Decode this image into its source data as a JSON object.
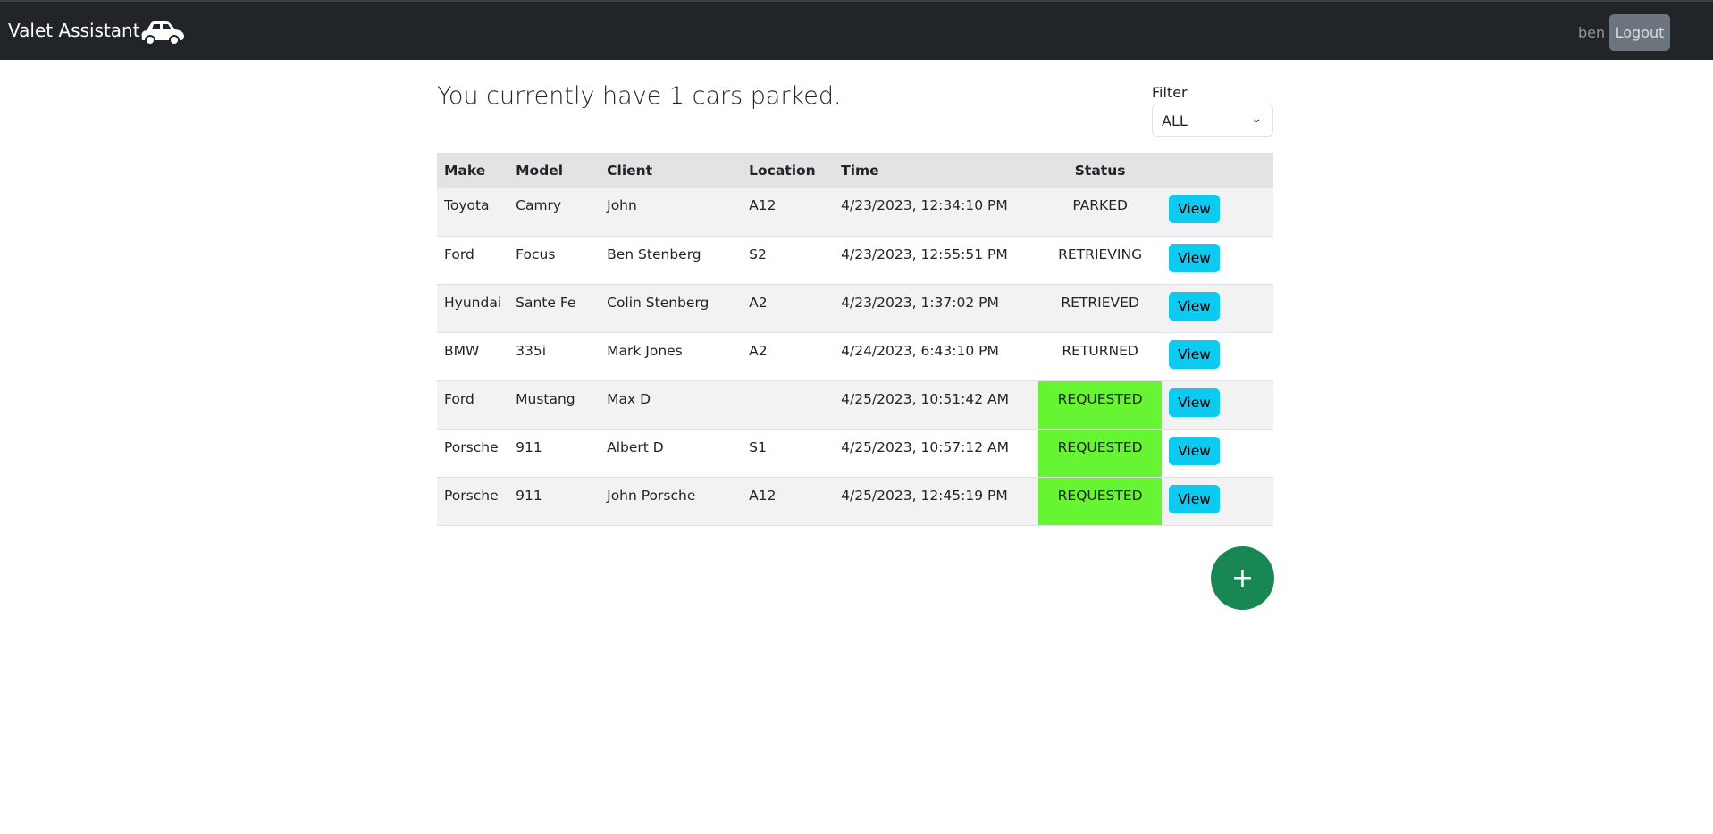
{
  "navbar": {
    "brand": "Valet Assistant",
    "car_icon": "car-icon",
    "username": "ben",
    "logout_label": "Logout"
  },
  "main": {
    "title": "You currently have 1 cars parked.",
    "filter": {
      "label": "Filter",
      "value": "ALL"
    },
    "table": {
      "headers": [
        "Make",
        "Model",
        "Client",
        "Location",
        "Time",
        "Status",
        ""
      ],
      "view_label": "View",
      "rows": [
        {
          "make": "Toyota",
          "model": "Camry",
          "client": "John",
          "location": "A12",
          "time": "4/23/2023, 12:34:10 PM",
          "status": "PARKED"
        },
        {
          "make": "Ford",
          "model": "Focus",
          "client": "Ben Stenberg",
          "location": "S2",
          "time": "4/23/2023, 12:55:51 PM",
          "status": "RETRIEVING"
        },
        {
          "make": "Hyundai",
          "model": "Sante Fe",
          "client": "Colin Stenberg",
          "location": "A2",
          "time": "4/23/2023, 1:37:02 PM",
          "status": "RETRIEVED"
        },
        {
          "make": "BMW",
          "model": "335i",
          "client": "Mark Jones",
          "location": "A2",
          "time": "4/24/2023, 6:43:10 PM",
          "status": "RETURNED"
        },
        {
          "make": "Ford",
          "model": "Mustang",
          "client": "Max D",
          "location": "",
          "time": "4/25/2023, 10:51:42 AM",
          "status": "REQUESTED"
        },
        {
          "make": "Porsche",
          "model": "911",
          "client": "Albert D",
          "location": "S1",
          "time": "4/25/2023, 10:57:12 AM",
          "status": "REQUESTED"
        },
        {
          "make": "Porsche",
          "model": "911",
          "client": "John Porsche",
          "location": "A12",
          "time": "4/25/2023, 12:45:19 PM",
          "status": "REQUESTED"
        }
      ]
    },
    "add_label": "+"
  },
  "colors": {
    "requested": "#66f433",
    "view": "#0dcaf0",
    "add": "#198754",
    "navbar": "#212529"
  }
}
